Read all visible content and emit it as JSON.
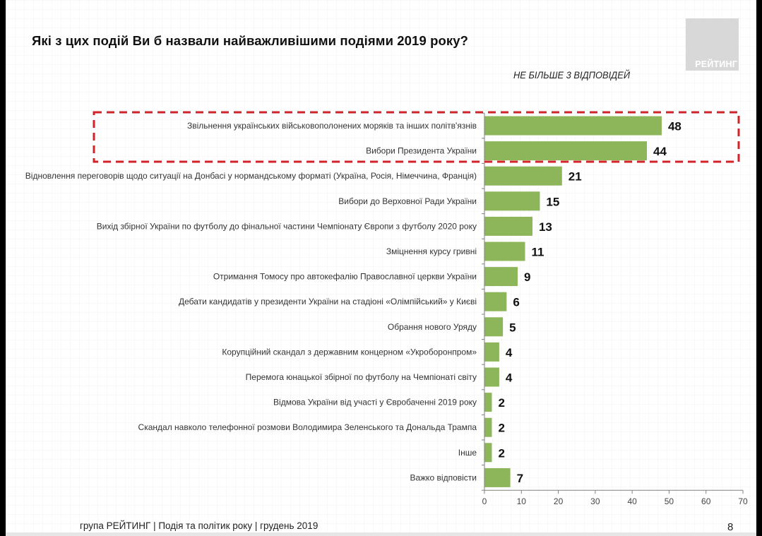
{
  "slide": {
    "title": "Які з цих подій Ви б назвали найважливішими подіями 2019 року?",
    "subtitle": "НЕ БІЛЬШЕ 3 ВІДПОВІДЕЙ",
    "logo_text": "РЕЙТИНГ",
    "footer": "група РЕЙТИНГ | Подія та політик року | грудень 2019",
    "page_number": "8"
  },
  "colors": {
    "bar": "#8db55a",
    "highlight_box": "#d2232a",
    "axis": "#808080"
  },
  "chart_data": {
    "type": "bar",
    "orientation": "horizontal",
    "title": "Які з цих подій Ви б назвали найважливішими подіями 2019 року?",
    "subtitle": "НЕ БІЛЬШЕ 3 ВІДПОВІДЕЙ",
    "xlabel": "",
    "ylabel": "",
    "xlim": [
      0,
      70
    ],
    "xticks": [
      0,
      10,
      20,
      30,
      40,
      50,
      60,
      70
    ],
    "grid": false,
    "legend": "none",
    "highlighted_categories": [
      0,
      1
    ],
    "categories": [
      "Звільнення українських військовополонених моряків та інших політв'язнів",
      "Вибори Президента України",
      "Відновлення переговорів щодо ситуації на Донбасі у нормандському форматі (Україна, Росія, Німеччина, Франція)",
      "Вибори до Верховної Ради України",
      "Вихід збірної України по футболу до фінальної частини Чемпіонату Європи з футболу 2020 року",
      "Зміцнення курсу гривні",
      "Отримання Томосу про автокефалію Православної церкви України",
      "Дебати кандидатів у президенти України на стадіоні «Олімпійський» у Києві",
      "Обрання нового Уряду",
      "Корупційний скандал з державним концерном «Укроборонпром»",
      "Перемога юнацької збірної по футболу на Чемпіонаті світу",
      "Відмова України від участі у Євробаченні 2019 року",
      "Скандал навколо телефонної розмови Володимира Зеленського та Дональда Трампа",
      "Інше",
      "Важко відповісти"
    ],
    "values": [
      48,
      44,
      21,
      15,
      13,
      11,
      9,
      6,
      5,
      4,
      4,
      2,
      2,
      2,
      7
    ]
  }
}
